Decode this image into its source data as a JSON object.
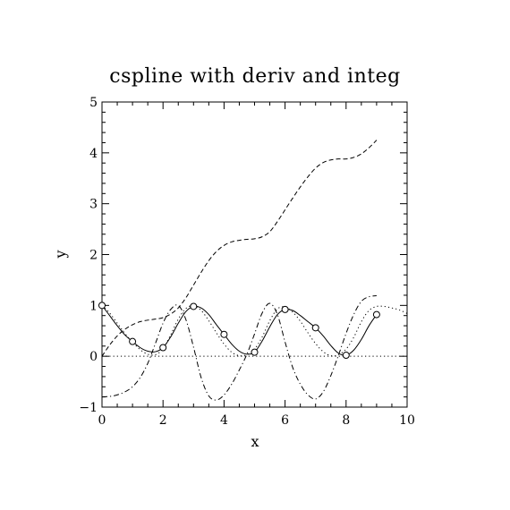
{
  "chart_data": {
    "type": "line",
    "title": "cspline with deriv and integ",
    "xlabel": "x",
    "ylabel": "y",
    "xlim": [
      0,
      10
    ],
    "ylim": [
      -1,
      5
    ],
    "xticks": [
      0,
      2,
      4,
      6,
      8,
      10
    ],
    "yticks": [
      -1,
      0,
      1,
      2,
      3,
      4,
      5
    ],
    "xtick_labels": [
      "0",
      "2",
      "4",
      "6",
      "8",
      "10"
    ],
    "ytick_labels": [
      "−1",
      "0",
      "1",
      "2",
      "3",
      "4",
      "5"
    ],
    "grid": false,
    "legend": "none",
    "points": {
      "x": [
        0,
        1,
        2,
        3,
        4,
        5,
        6,
        7,
        8,
        9
      ],
      "y": [
        1.0,
        0.29,
        0.17,
        0.98,
        0.43,
        0.08,
        0.92,
        0.56,
        0.02,
        0.82
      ]
    },
    "series": [
      {
        "style": "solid",
        "x": [
          0,
          0.25,
          0.5,
          0.75,
          1,
          1.25,
          1.5,
          1.75,
          2,
          2.25,
          2.5,
          2.75,
          3,
          3.25,
          3.5,
          3.75,
          4,
          4.25,
          4.5,
          4.75,
          5,
          5.25,
          5.5,
          5.75,
          6,
          6.25,
          6.5,
          6.75,
          7,
          7.25,
          7.5,
          7.75,
          8,
          8.25,
          8.5,
          8.75,
          9
        ],
        "y": [
          1.0,
          0.8,
          0.6,
          0.42,
          0.29,
          0.17,
          0.1,
          0.09,
          0.17,
          0.38,
          0.65,
          0.88,
          0.98,
          0.95,
          0.82,
          0.62,
          0.43,
          0.24,
          0.1,
          0.04,
          0.08,
          0.3,
          0.58,
          0.82,
          0.92,
          0.9,
          0.8,
          0.68,
          0.56,
          0.4,
          0.21,
          0.06,
          0.02,
          0.12,
          0.33,
          0.6,
          0.82
        ]
      },
      {
        "style": "dotted",
        "x": [
          0,
          0.25,
          0.5,
          0.75,
          1,
          1.25,
          1.5,
          1.75,
          2,
          2.25,
          2.5,
          2.75,
          3,
          3.25,
          3.5,
          3.75,
          4,
          4.25,
          4.5,
          4.75,
          5,
          5.25,
          5.5,
          5.75,
          6,
          6.25,
          6.5,
          6.75,
          7,
          7.25,
          7.5,
          7.75,
          8,
          8.25,
          8.5,
          8.75,
          9,
          9.25,
          9.5,
          9.75,
          10
        ],
        "y": [
          1.0,
          0.85,
          0.65,
          0.45,
          0.28,
          0.13,
          0.04,
          0.03,
          0.15,
          0.42,
          0.73,
          0.94,
          0.99,
          0.9,
          0.7,
          0.46,
          0.24,
          0.08,
          0.01,
          0.03,
          0.14,
          0.38,
          0.7,
          0.93,
          0.97,
          0.87,
          0.69,
          0.46,
          0.25,
          0.09,
          0.01,
          0.03,
          0.14,
          0.37,
          0.68,
          0.9,
          0.98,
          0.98,
          0.95,
          0.91,
          0.84
        ]
      },
      {
        "style": "dashed",
        "x": [
          0,
          0.25,
          0.5,
          0.75,
          1,
          1.25,
          1.5,
          1.75,
          2,
          2.25,
          2.5,
          2.75,
          3,
          3.25,
          3.5,
          3.75,
          4,
          4.25,
          4.5,
          4.75,
          5,
          5.25,
          5.5,
          5.75,
          6,
          6.25,
          6.5,
          6.75,
          7,
          7.25,
          7.5,
          7.75,
          8,
          8.25,
          8.5,
          8.75,
          9
        ],
        "y": [
          0.0,
          0.22,
          0.4,
          0.53,
          0.62,
          0.68,
          0.71,
          0.73,
          0.76,
          0.83,
          0.95,
          1.15,
          1.4,
          1.65,
          1.88,
          2.06,
          2.18,
          2.25,
          2.28,
          2.3,
          2.31,
          2.35,
          2.45,
          2.65,
          2.88,
          3.11,
          3.33,
          3.53,
          3.7,
          3.81,
          3.86,
          3.88,
          3.88,
          3.91,
          3.98,
          4.1,
          4.25
        ]
      },
      {
        "style": "dash-dot",
        "x": [
          0,
          0.25,
          0.5,
          0.75,
          1,
          1.25,
          1.5,
          1.75,
          2,
          2.25,
          2.5,
          2.75,
          3,
          3.25,
          3.5,
          3.75,
          4,
          4.25,
          4.5,
          4.75,
          5,
          5.25,
          5.5,
          5.75,
          6,
          6.25,
          6.5,
          6.75,
          7,
          7.25,
          7.5,
          7.75,
          8,
          8.25,
          8.5,
          8.75,
          9
        ],
        "y": [
          -0.8,
          -0.79,
          -0.76,
          -0.7,
          -0.6,
          -0.42,
          -0.14,
          0.25,
          0.65,
          0.92,
          1.0,
          0.72,
          0.18,
          -0.42,
          -0.78,
          -0.86,
          -0.76,
          -0.55,
          -0.27,
          0.04,
          0.44,
          0.85,
          1.04,
          0.82,
          0.28,
          -0.22,
          -0.55,
          -0.76,
          -0.84,
          -0.7,
          -0.38,
          0.02,
          0.45,
          0.82,
          1.08,
          1.17,
          1.19
        ]
      },
      {
        "style": "dotted",
        "x": [
          0,
          10
        ],
        "y": [
          0,
          0
        ]
      }
    ]
  }
}
